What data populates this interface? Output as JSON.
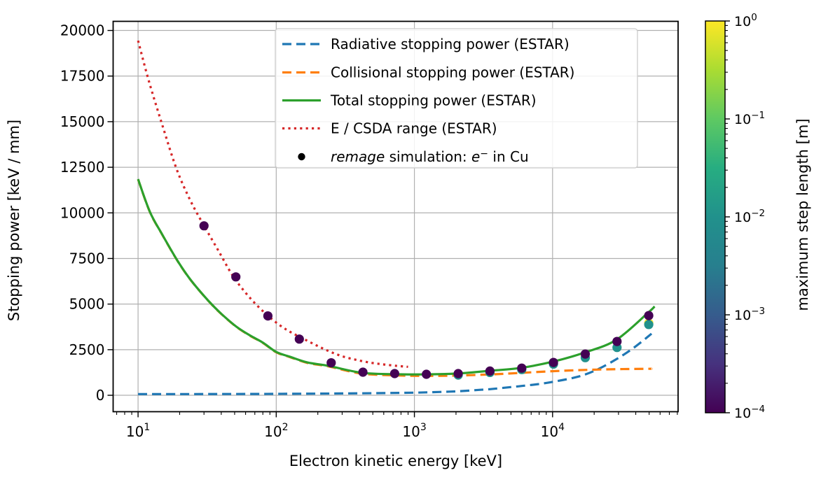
{
  "chart_data": {
    "type": "line+scatter",
    "title": "",
    "xlabel": "Electron kinetic energy [keV]",
    "ylabel": "Stopping power [keV / mm]",
    "xscale": "log",
    "yscale": "linear",
    "xlim": [
      6.6,
      81000
    ],
    "ylim": [
      -900,
      20500
    ],
    "grid": true,
    "grid_color": "#b0b0b0",
    "frame_color": "#000000",
    "x_major_ticks": [
      {
        "value": 10,
        "base": "10",
        "exp": "1"
      },
      {
        "value": 100,
        "base": "10",
        "exp": "2"
      },
      {
        "value": 1000,
        "base": "10",
        "exp": "3"
      },
      {
        "value": 10000,
        "base": "10",
        "exp": "4"
      }
    ],
    "y_major_ticks": [
      0,
      2500,
      5000,
      7500,
      10000,
      12500,
      15000,
      17500,
      20000
    ],
    "series": [
      {
        "name": "Radiative stopping power (ESTAR)",
        "color": "#1f77b4",
        "style": "dashed",
        "points": [
          [
            10,
            65
          ],
          [
            20,
            66
          ],
          [
            40,
            70
          ],
          [
            80,
            76
          ],
          [
            150,
            85
          ],
          [
            300,
            100
          ],
          [
            600,
            120
          ],
          [
            1000,
            145
          ],
          [
            1500,
            180
          ],
          [
            2075,
            220
          ],
          [
            3000,
            300
          ],
          [
            3523,
            335
          ],
          [
            5000,
            450
          ],
          [
            5981,
            510
          ],
          [
            8000,
            620
          ],
          [
            10154,
            740
          ],
          [
            14000,
            950
          ],
          [
            17238,
            1140
          ],
          [
            22000,
            1480
          ],
          [
            29265,
            2000
          ],
          [
            38000,
            2560
          ],
          [
            49682,
            3250
          ],
          [
            52000,
            3380
          ]
        ]
      },
      {
        "name": "Collisional stopping power (ESTAR)",
        "color": "#ff7f0e",
        "style": "dashed",
        "points": [
          [
            10,
            11840
          ],
          [
            12.2,
            10035
          ],
          [
            15,
            8790
          ],
          [
            19.2,
            7390
          ],
          [
            24,
            6320
          ],
          [
            32.3,
            5170
          ],
          [
            40,
            4460
          ],
          [
            51.5,
            3750
          ],
          [
            65,
            3255
          ],
          [
            80,
            2875
          ],
          [
            100,
            2355
          ],
          [
            125,
            2100
          ],
          [
            168,
            1775
          ],
          [
            240,
            1580
          ],
          [
            410,
            1195
          ],
          [
            700,
            1095
          ],
          [
            1170,
            1065
          ],
          [
            2000,
            1080
          ],
          [
            3470,
            1140
          ],
          [
            5800,
            1225
          ],
          [
            10000,
            1320
          ],
          [
            17000,
            1390
          ],
          [
            28800,
            1430
          ],
          [
            49000,
            1450
          ],
          [
            52000,
            1455
          ]
        ]
      },
      {
        "name": "Total stopping power (ESTAR)",
        "color": "#2ca02c",
        "style": "solid",
        "points": [
          [
            10,
            11850
          ],
          [
            12.2,
            10045
          ],
          [
            15,
            8800
          ],
          [
            19.2,
            7400
          ],
          [
            24,
            6330
          ],
          [
            32.3,
            5180
          ],
          [
            40,
            4470
          ],
          [
            51.5,
            3760
          ],
          [
            65,
            3270
          ],
          [
            80,
            2890
          ],
          [
            100,
            2375
          ],
          [
            125,
            2120
          ],
          [
            168,
            1800
          ],
          [
            240,
            1610
          ],
          [
            410,
            1240
          ],
          [
            700,
            1155
          ],
          [
            1170,
            1145
          ],
          [
            2000,
            1190
          ],
          [
            3470,
            1340
          ],
          [
            5800,
            1495
          ],
          [
            10000,
            1840
          ],
          [
            17000,
            2340
          ],
          [
            28800,
            3030
          ],
          [
            49000,
            4520
          ],
          [
            54800,
            4870
          ]
        ]
      },
      {
        "name": "E / CSDA range (ESTAR)",
        "color": "#d62728",
        "style": "dotted",
        "points": [
          [
            10,
            19440
          ],
          [
            12,
            17200
          ],
          [
            15,
            14800
          ],
          [
            19,
            12400
          ],
          [
            24,
            10650
          ],
          [
            30,
            9300
          ],
          [
            38,
            7950
          ],
          [
            48,
            6600
          ],
          [
            60,
            5620
          ],
          [
            75,
            4820
          ],
          [
            95,
            4120
          ],
          [
            120,
            3570
          ],
          [
            150,
            3180
          ],
          [
            190,
            2780
          ],
          [
            240,
            2420
          ],
          [
            300,
            2140
          ],
          [
            380,
            1940
          ],
          [
            480,
            1790
          ],
          [
            600,
            1690
          ],
          [
            750,
            1610
          ],
          [
            900,
            1560
          ]
        ]
      }
    ],
    "scatter": {
      "legend_label": "remage simulation: e− in Cu",
      "legend_label_parts": {
        "name_italic": "remage",
        "middle": " simulation: ",
        "particle_italic": "e",
        "particle_sup": "−",
        "suffix": " in Cu"
      },
      "legend_marker_color": "#000000",
      "groups": [
        {
          "step_length_m": 0.0001,
          "points": [
            [
              30,
              9290
            ],
            [
              51,
              6490
            ],
            [
              87,
              4350
            ],
            [
              147,
              3080
            ],
            [
              250,
              1780
            ],
            [
              424,
              1265
            ],
            [
              720,
              1190
            ],
            [
              1222,
              1150
            ],
            [
              2075,
              1190
            ],
            [
              3523,
              1330
            ],
            [
              5981,
              1490
            ],
            [
              10154,
              1800
            ],
            [
              17238,
              2260
            ],
            [
              29265,
              2950
            ],
            [
              49682,
              4370
            ]
          ]
        },
        {
          "step_length_m": 0.01,
          "points": [
            [
              2075,
              1110
            ],
            [
              3523,
              1250
            ],
            [
              5981,
              1410
            ],
            [
              10154,
              1710
            ],
            [
              17238,
              2060
            ],
            [
              29265,
              2620
            ],
            [
              49682,
              3880
            ]
          ]
        },
        {
          "step_length_m": 1,
          "points": [
            [
              49682,
              3960
            ]
          ]
        }
      ]
    },
    "colorbar": {
      "label": "maximum step length [m]",
      "scale": "log",
      "range": [
        0.0001,
        1
      ],
      "cmap_name": "viridis",
      "cmap_stops": [
        {
          "t": 0.0,
          "color": "#440154"
        },
        {
          "t": 0.125,
          "color": "#46327e"
        },
        {
          "t": 0.25,
          "color": "#365c8d"
        },
        {
          "t": 0.375,
          "color": "#277f8e"
        },
        {
          "t": 0.5,
          "color": "#21918c"
        },
        {
          "t": 0.625,
          "color": "#27ad81"
        },
        {
          "t": 0.75,
          "color": "#5ec962"
        },
        {
          "t": 0.875,
          "color": "#aadc32"
        },
        {
          "t": 1.0,
          "color": "#fde725"
        }
      ],
      "ticks": [
        {
          "value": 1,
          "base": "10",
          "exp": "0"
        },
        {
          "value": 0.1,
          "base": "10",
          "exp": "−1"
        },
        {
          "value": 0.01,
          "base": "10",
          "exp": "−2"
        },
        {
          "value": 0.001,
          "base": "10",
          "exp": "−3"
        },
        {
          "value": 0.0001,
          "base": "10",
          "exp": "−4"
        }
      ]
    },
    "legend": {
      "position": "upper center",
      "border_color": "#cccccc",
      "background": "#ffffff"
    }
  }
}
